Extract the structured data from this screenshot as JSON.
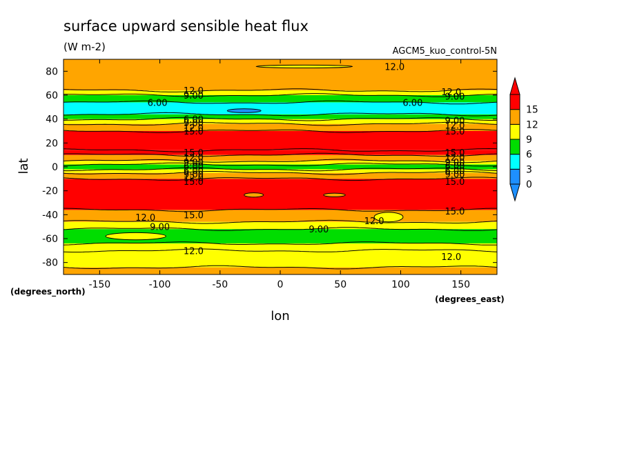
{
  "chart_data": {
    "type": "heatmap",
    "title": "surface upward sensible heat flux",
    "units": "(W m-2)",
    "dataset": "AGCM5_kuo_control-5N",
    "xlabel": "lon",
    "ylabel": "lat",
    "x_units": "(degrees_east)",
    "y_units": "(degrees_north)",
    "xlim": [
      -180,
      180
    ],
    "ylim": [
      -90,
      90
    ],
    "x_ticks": [
      -150,
      -100,
      -50,
      0,
      50,
      100,
      150
    ],
    "x_tick_labels": [
      "-150",
      "-100",
      "-50",
      "0",
      "50",
      "100",
      "150"
    ],
    "y_ticks": [
      -80,
      -60,
      -40,
      -20,
      0,
      20,
      40,
      60,
      80
    ],
    "y_tick_labels": [
      "-80",
      "-60",
      "-40",
      "-20",
      "0",
      "20",
      "40",
      "60",
      "80"
    ],
    "colorbar": {
      "levels": [
        0,
        3,
        6,
        9,
        12,
        15
      ],
      "labels": [
        "0",
        "3",
        "6",
        "9",
        "12",
        "15"
      ],
      "colors": [
        "#1e90ff",
        "#00ffff",
        "#00dd00",
        "#ffff00",
        "#ffa500",
        "#ff0000"
      ],
      "under_color": "#1e90ff",
      "over_color": "#ff0000"
    },
    "zonal_bands": [
      {
        "lat_min": -90,
        "lat_max": -84,
        "value": 13
      },
      {
        "lat_min": -84,
        "lat_max": -70,
        "value": 11
      },
      {
        "lat_min": -70,
        "lat_max": -64,
        "value": 10
      },
      {
        "lat_min": -64,
        "lat_max": -52,
        "value": 7
      },
      {
        "lat_min": -52,
        "lat_max": -46,
        "value": 10
      },
      {
        "lat_min": -46,
        "lat_max": -36,
        "value": 13
      },
      {
        "lat_min": -36,
        "lat_max": -10,
        "value": 17
      },
      {
        "lat_min": -10,
        "lat_max": -5,
        "value": 13
      },
      {
        "lat_min": -5,
        "lat_max": -2,
        "value": 10
      },
      {
        "lat_min": -2,
        "lat_max": 2,
        "value": 7
      },
      {
        "lat_min": 2,
        "lat_max": 5,
        "value": 10
      },
      {
        "lat_min": 5,
        "lat_max": 10,
        "value": 13
      },
      {
        "lat_min": 10,
        "lat_max": 14,
        "value": 16
      },
      {
        "lat_min": 14,
        "lat_max": 30,
        "value": 17
      },
      {
        "lat_min": 30,
        "lat_max": 36,
        "value": 13
      },
      {
        "lat_min": 36,
        "lat_max": 40,
        "value": 10
      },
      {
        "lat_min": 40,
        "lat_max": 44,
        "value": 7
      },
      {
        "lat_min": 44,
        "lat_max": 54,
        "value": 4
      },
      {
        "lat_min": 54,
        "lat_max": 60,
        "value": 7
      },
      {
        "lat_min": 60,
        "lat_max": 64,
        "value": 10
      },
      {
        "lat_min": 64,
        "lat_max": 90,
        "value": 13
      }
    ],
    "contour_lats": [
      -84,
      -70,
      -64,
      -52,
      -46,
      -36,
      -10,
      -5,
      -2,
      2,
      5,
      10,
      14,
      30,
      36,
      40,
      44,
      54,
      60,
      64
    ],
    "patches": [
      {
        "lon": -22,
        "lat": -23.5,
        "rlon": 8,
        "rlat": 1.8,
        "value": 13
      },
      {
        "lon": 45,
        "lat": -23.5,
        "rlon": 9,
        "rlat": 1.5,
        "value": 13
      },
      {
        "lon": -30,
        "lat": 47,
        "rlon": 14,
        "rlat": 1.6,
        "value": 1.5
      },
      {
        "lon": 90,
        "lat": -42,
        "rlon": 12,
        "rlat": 4,
        "value": 10
      },
      {
        "lon": -120,
        "lat": -58,
        "rlon": 25,
        "rlat": 3,
        "value": 10
      },
      {
        "lon": 20,
        "lat": 84,
        "rlon": 40,
        "rlat": 1.2,
        "value": 11
      }
    ],
    "contour_labels": [
      {
        "lon": 95,
        "lat": 84,
        "text": "12.0"
      },
      {
        "lon": -72,
        "lat": 64,
        "text": "12.0"
      },
      {
        "lon": -72,
        "lat": 60,
        "text": "9.00"
      },
      {
        "lon": -102,
        "lat": 54,
        "text": "6.00"
      },
      {
        "lon": 110,
        "lat": 54,
        "text": "6.00"
      },
      {
        "lon": 142,
        "lat": 63,
        "text": "12.0"
      },
      {
        "lon": 145,
        "lat": 59,
        "text": "9.00"
      },
      {
        "lon": -72,
        "lat": 40,
        "text": "6.00"
      },
      {
        "lon": -72,
        "lat": 37,
        "text": "9.00"
      },
      {
        "lon": -72,
        "lat": 33,
        "text": "12.0"
      },
      {
        "lon": -72,
        "lat": 30,
        "text": "15.0"
      },
      {
        "lon": 145,
        "lat": 39,
        "text": "9.00"
      },
      {
        "lon": 145,
        "lat": 35,
        "text": "12.0"
      },
      {
        "lon": 145,
        "lat": 30,
        "text": "15.0"
      },
      {
        "lon": -72,
        "lat": 12,
        "text": "15.0"
      },
      {
        "lon": -72,
        "lat": 8,
        "text": "12.0"
      },
      {
        "lon": -72,
        "lat": 4,
        "text": "9.00"
      },
      {
        "lon": -72,
        "lat": 1,
        "text": "6.00"
      },
      {
        "lon": -72,
        "lat": -3,
        "text": "6.00"
      },
      {
        "lon": -72,
        "lat": -6,
        "text": "9.00"
      },
      {
        "lon": -72,
        "lat": -9,
        "text": "12.0"
      },
      {
        "lon": -72,
        "lat": -12,
        "text": "15.0"
      },
      {
        "lon": 145,
        "lat": 12,
        "text": "15.0"
      },
      {
        "lon": 145,
        "lat": 8,
        "text": "12.0"
      },
      {
        "lon": 145,
        "lat": 4,
        "text": "9.00"
      },
      {
        "lon": 145,
        "lat": 1,
        "text": "6.00"
      },
      {
        "lon": 145,
        "lat": -3,
        "text": "6.00"
      },
      {
        "lon": 145,
        "lat": -6,
        "text": "9.00"
      },
      {
        "lon": 145,
        "lat": -12,
        "text": "15.0"
      },
      {
        "lon": 145,
        "lat": -37,
        "text": "15.0"
      },
      {
        "lon": -72,
        "lat": -40,
        "text": "15.0"
      },
      {
        "lon": -112,
        "lat": -42,
        "text": "12.0"
      },
      {
        "lon": -100,
        "lat": -50,
        "text": "9.00"
      },
      {
        "lon": 32,
        "lat": -52,
        "text": "9.00"
      },
      {
        "lon": 78,
        "lat": -45,
        "text": "12.0"
      },
      {
        "lon": -72,
        "lat": -70,
        "text": "12.0"
      },
      {
        "lon": 142,
        "lat": -75,
        "text": "12.0"
      }
    ]
  }
}
